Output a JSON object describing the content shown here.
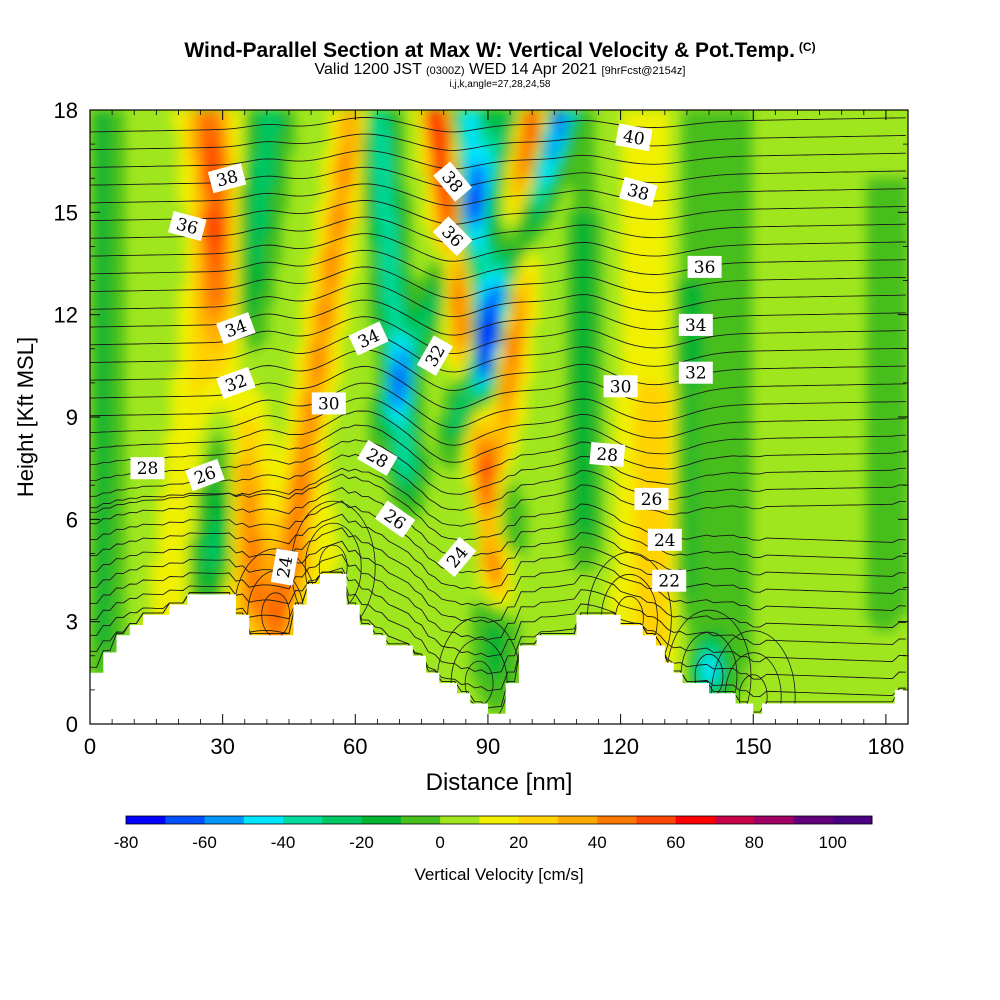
{
  "title": {
    "main": "Wind-Parallel Section at Max W: Vertical Velocity & Pot.Temp.",
    "copyright": "(C)",
    "line2_a": "Valid 1200 JST",
    "line2_b": "(0300Z)",
    "line2_c": "WED 14 Apr 2021",
    "line2_d": "[9hrFcst@2154z]",
    "line3": "i,j,k,angle=27,28,24,58"
  },
  "chart_data": {
    "type": "heatmap",
    "xlabel": "Distance [nm]",
    "ylabel": "Height [Kft MSL]",
    "xlim": [
      0,
      185
    ],
    "ylim": [
      0,
      18
    ],
    "xticks": [
      0,
      30,
      60,
      90,
      120,
      150,
      180
    ],
    "yticks": [
      0,
      3,
      6,
      9,
      12,
      15,
      18
    ],
    "colorbar": {
      "label": "Vertical Velocity [cm/s]",
      "min": -80,
      "max": 110,
      "step": 10,
      "tick_values": [
        -80,
        -60,
        -40,
        -20,
        0,
        20,
        40,
        60,
        80,
        100
      ],
      "colors": [
        "#0000ff",
        "#0050ff",
        "#0096ff",
        "#00e6ff",
        "#00dca0",
        "#00c864",
        "#00b432",
        "#46be1e",
        "#a0e61e",
        "#f0f000",
        "#ffd200",
        "#ffaa00",
        "#ff7800",
        "#ff4600",
        "#ff0000",
        "#c80046",
        "#a00064",
        "#64007d",
        "#4b0082"
      ]
    },
    "terrain_kft": [
      [
        0,
        1.5
      ],
      [
        3,
        1.5
      ],
      [
        3,
        2.1
      ],
      [
        6,
        2.1
      ],
      [
        6,
        2.6
      ],
      [
        9,
        2.6
      ],
      [
        9,
        2.9
      ],
      [
        12,
        2.9
      ],
      [
        12,
        3.2
      ],
      [
        18,
        3.2
      ],
      [
        18,
        3.5
      ],
      [
        22,
        3.5
      ],
      [
        22,
        3.8
      ],
      [
        33,
        3.8
      ],
      [
        33,
        3.2
      ],
      [
        36,
        3.2
      ],
      [
        36,
        2.6
      ],
      [
        46,
        2.6
      ],
      [
        46,
        3.5
      ],
      [
        49,
        3.5
      ],
      [
        49,
        4.1
      ],
      [
        52,
        4.1
      ],
      [
        52,
        4.4
      ],
      [
        58,
        4.4
      ],
      [
        58,
        3.5
      ],
      [
        61,
        3.5
      ],
      [
        61,
        2.9
      ],
      [
        64,
        2.9
      ],
      [
        64,
        2.6
      ],
      [
        67,
        2.6
      ],
      [
        67,
        2.3
      ],
      [
        73,
        2.3
      ],
      [
        73,
        2.0
      ],
      [
        76,
        2.0
      ],
      [
        76,
        1.5
      ],
      [
        79,
        1.5
      ],
      [
        79,
        1.2
      ],
      [
        83,
        1.2
      ],
      [
        83,
        0.9
      ],
      [
        86,
        0.9
      ],
      [
        86,
        0.6
      ],
      [
        90,
        0.6
      ],
      [
        90,
        0.3
      ],
      [
        94,
        0.3
      ],
      [
        94,
        1.2
      ],
      [
        97,
        1.2
      ],
      [
        97,
        2.3
      ],
      [
        101,
        2.3
      ],
      [
        101,
        2.6
      ],
      [
        110,
        2.6
      ],
      [
        110,
        3.2
      ],
      [
        120,
        3.2
      ],
      [
        120,
        2.9
      ],
      [
        125,
        2.9
      ],
      [
        125,
        2.6
      ],
      [
        128,
        2.6
      ],
      [
        128,
        2.3
      ],
      [
        130,
        2.3
      ],
      [
        130,
        1.8
      ],
      [
        132,
        1.8
      ],
      [
        132,
        1.5
      ],
      [
        134,
        1.5
      ],
      [
        134,
        1.2
      ],
      [
        140,
        1.2
      ],
      [
        140,
        0.9
      ],
      [
        146,
        0.9
      ],
      [
        146,
        0.6
      ],
      [
        150,
        0.6
      ],
      [
        150,
        0.3
      ],
      [
        152,
        0.3
      ],
      [
        152,
        0.6
      ],
      [
        182,
        0.6
      ],
      [
        182,
        1.0
      ],
      [
        185,
        1.0
      ]
    ],
    "theta_contour_labels": [
      {
        "text": "38",
        "x": 31,
        "y": 16.0,
        "angle": -15
      },
      {
        "text": "36",
        "x": 22,
        "y": 14.6,
        "angle": 15
      },
      {
        "text": "34",
        "x": 33,
        "y": 11.6,
        "angle": -20
      },
      {
        "text": "32",
        "x": 33,
        "y": 10.0,
        "angle": -20
      },
      {
        "text": "30",
        "x": 54,
        "y": 9.4,
        "angle": 0
      },
      {
        "text": "28",
        "x": 13,
        "y": 7.5,
        "angle": 0
      },
      {
        "text": "26",
        "x": 26,
        "y": 7.3,
        "angle": -20
      },
      {
        "text": "24",
        "x": 44,
        "y": 4.6,
        "angle": -80
      },
      {
        "text": "34",
        "x": 63,
        "y": 11.3,
        "angle": -25
      },
      {
        "text": "28",
        "x": 65,
        "y": 7.8,
        "angle": 30
      },
      {
        "text": "26",
        "x": 69,
        "y": 6.0,
        "angle": 35
      },
      {
        "text": "32",
        "x": 78,
        "y": 10.8,
        "angle": -60
      },
      {
        "text": "24",
        "x": 83,
        "y": 4.9,
        "angle": -50
      },
      {
        "text": "38",
        "x": 82,
        "y": 15.9,
        "angle": 50
      },
      {
        "text": "36",
        "x": 82,
        "y": 14.3,
        "angle": 45
      },
      {
        "text": "40",
        "x": 123,
        "y": 17.2,
        "angle": 10
      },
      {
        "text": "38",
        "x": 124,
        "y": 15.6,
        "angle": 15
      },
      {
        "text": "36",
        "x": 139,
        "y": 13.4,
        "angle": 0
      },
      {
        "text": "34",
        "x": 137,
        "y": 11.7,
        "angle": 0
      },
      {
        "text": "32",
        "x": 137,
        "y": 10.3,
        "angle": 0
      },
      {
        "text": "30",
        "x": 120,
        "y": 9.9,
        "angle": 0
      },
      {
        "text": "28",
        "x": 117,
        "y": 7.9,
        "angle": 5
      },
      {
        "text": "26",
        "x": 127,
        "y": 6.6,
        "angle": 0
      },
      {
        "text": "24",
        "x": 130,
        "y": 5.4,
        "angle": 0
      },
      {
        "text": "22",
        "x": 131,
        "y": 4.2,
        "angle": 0
      }
    ]
  }
}
